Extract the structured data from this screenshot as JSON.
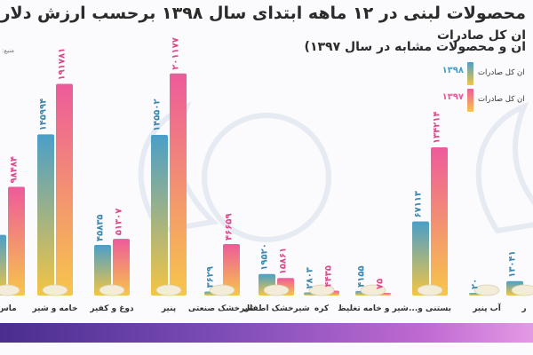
{
  "header": {
    "title_line1": "محصولات لبنی در ۱۲ ماهه ابتدای سال ۱۳۹۸ برحسب ارزش دلار",
    "title_line2": "ان کل صادرات",
    "title_line3": "ان و محصولات مشابه در سال ۱۳۹۷)",
    "source": "منبع:"
  },
  "legend": [
    {
      "year": "۱۳۹۸",
      "label": "ان کل صادرات",
      "color": "#4a9fc9"
    },
    {
      "year": "۱۳۹۷",
      "label": "ان کل صادرات",
      "color": "#ee5a9b"
    }
  ],
  "colors": {
    "bar_1398_top": "#4a9fc9",
    "bar_1398_bottom": "#f4c542",
    "bar_1397_top": "#ee5a9b",
    "bar_1397_bottom": "#f7c64a",
    "band": "#5b3a9e"
  },
  "chart_data": {
    "type": "bar",
    "categories": [
      "ماس",
      "خامه و شیر",
      "دوغ و کفیر",
      "پنیر",
      "شیرخشک صنعتی",
      "شیرخشک اطفال",
      "کره",
      "شیر و خامه تغلیظ",
      "بستنی و...",
      "آب پنیر",
      "ر"
    ],
    "series": [
      {
        "name": "۱۳۹۸",
        "values": [
          55000,
          145994,
          45835,
          145502,
          3629,
          19520,
          2803,
          4155,
          67113,
          20,
          13041
        ],
        "labels": [
          "",
          "۱۴۵۹۹۴",
          "۴۵۸۳۵",
          "۱۴۵۵۰۲",
          "۳۶۲۹",
          "۱۹۵۲۰",
          "۲۸۰۳",
          "۴۱۵۵",
          "۶۷۱۱۳",
          "۲۰",
          "۱۳۰۴۱"
        ]
      },
      {
        "name": "۱۳۹۷",
        "values": [
          98484,
          191781,
          51307,
          201177,
          46659,
          15861,
          4435,
          75,
          134214,
          0,
          0
        ],
        "labels": [
          "۹۸۴۸۴",
          "۱۹۱۷۸۱",
          "۵۱۳۰۷",
          "۲۰۱۱۷۷",
          "۴۶۶۵۹",
          "۱۵۸۶۱",
          "۴۴۳۵",
          "۷۵",
          "۱۳۴۲۱۴",
          "",
          ""
        ]
      }
    ],
    "ylim": [
      0,
      205000
    ],
    "grid": false,
    "legend_position": "top-right",
    "xlabel": "",
    "ylabel": ""
  }
}
